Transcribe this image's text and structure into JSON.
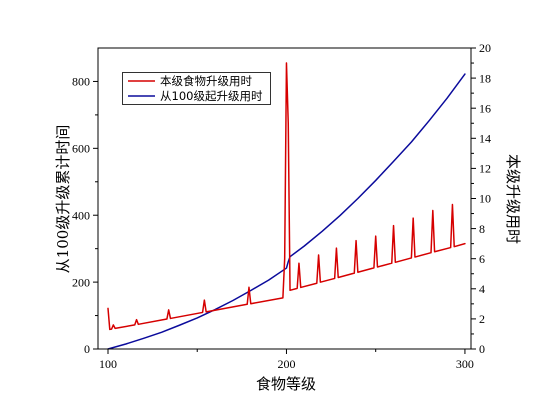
{
  "chart_data": {
    "type": "line",
    "xlabel": "食物等级",
    "xlim": [
      94.4,
      303.4
    ],
    "x_ticks": [
      100,
      200,
      300
    ],
    "grid": false,
    "legend": {
      "position": "top-left",
      "frame": true
    },
    "y_left": {
      "label": "从100级升级累计时间",
      "range": [
        0,
        900
      ],
      "ticks": [
        0,
        200,
        400,
        600,
        800
      ],
      "series": [
        {
          "name": "从100级起升级用时",
          "color": "#0b0b9c",
          "x": [
            100,
            110,
            120,
            130,
            140,
            150,
            160,
            170,
            180,
            190,
            200,
            201,
            202,
            210,
            220,
            230,
            240,
            250,
            260,
            270,
            280,
            290,
            300
          ],
          "y": [
            0,
            15,
            32,
            50,
            71,
            93,
            118,
            145,
            175,
            206,
            242,
            261,
            276,
            308,
            352,
            399,
            450,
            504,
            561,
            619,
            683,
            750,
            822
          ]
        }
      ]
    },
    "y_right": {
      "label": "本级升级用时",
      "range": [
        0,
        20
      ],
      "ticks": [
        0,
        2,
        4,
        6,
        8,
        10,
        12,
        14,
        16,
        18,
        20
      ],
      "series": [
        {
          "name": "本级食物升级用时",
          "color": "#d60000",
          "x": [
            100,
            101,
            102,
            103,
            104,
            115,
            116,
            117,
            133,
            134,
            135,
            153,
            154,
            155,
            178,
            179,
            180,
            198,
            199,
            200,
            201,
            202,
            206,
            207,
            208,
            217,
            218,
            219,
            227,
            228,
            229,
            238,
            239,
            240,
            249,
            250,
            251,
            259,
            260,
            261,
            270,
            271,
            272,
            281,
            282,
            283,
            292,
            293,
            294,
            300
          ],
          "y": [
            2.7,
            1.3,
            1.32,
            1.6,
            1.37,
            1.6,
            1.95,
            1.64,
            1.99,
            2.6,
            2.03,
            2.43,
            3.25,
            2.47,
            2.97,
            4.1,
            3.01,
            3.4,
            6.0,
            19.0,
            15.0,
            3.9,
            4.03,
            5.7,
            4.09,
            4.37,
            6.25,
            4.44,
            4.69,
            6.7,
            4.75,
            5.04,
            7.2,
            5.1,
            5.39,
            7.5,
            5.45,
            5.7,
            8.2,
            5.76,
            6.05,
            8.7,
            6.11,
            6.4,
            9.2,
            6.46,
            6.74,
            9.6,
            6.8,
            7.0
          ]
        }
      ]
    }
  }
}
